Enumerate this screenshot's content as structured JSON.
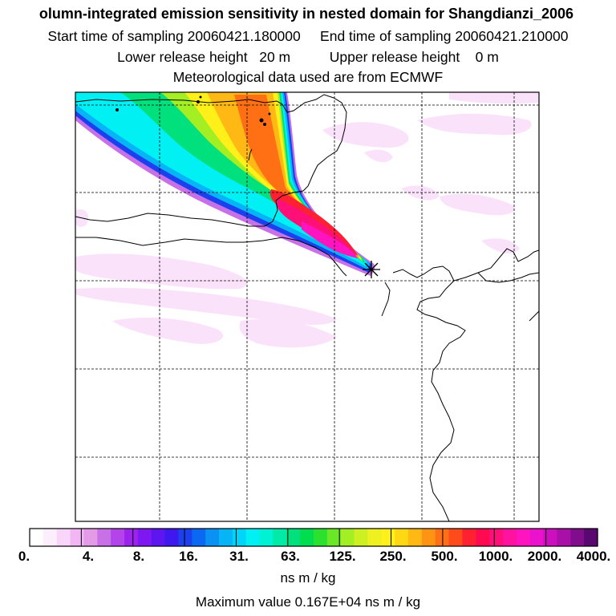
{
  "title": {
    "line1": "olumn-integrated emission sensitivity in nested domain for Shangdianzi_2006",
    "line2": "Start time of sampling 20060421.180000     End time of sampling 20060421.210000",
    "line3": "Lower release height   20 m          Upper release height    0 m",
    "line4": "Meteorological data used are from ECMWF"
  },
  "colorbar": {
    "labels": [
      "0.",
      "4.",
      "8.",
      "16.",
      "31.",
      "63.",
      "125.",
      "250.",
      "500.",
      "1000.",
      "2000.",
      "4000."
    ],
    "colors": [
      "#ffffff",
      "#fdeefd",
      "#f9d6f9",
      "#f2b6f4",
      "#e39be8",
      "#c870e6",
      "#b244ea",
      "#9d22ee",
      "#7e18f0",
      "#5e16f0",
      "#3e18ee",
      "#1d40ee",
      "#0a68f2",
      "#0b90f4",
      "#07b4f6",
      "#00d4f8",
      "#00f0f4",
      "#00f2d4",
      "#00eaa8",
      "#00e07c",
      "#00de50",
      "#2ce030",
      "#6ae828",
      "#a4ee24",
      "#ccf022",
      "#eef020",
      "#fff01a",
      "#ffd814",
      "#ffb814",
      "#ff9414",
      "#ff7014",
      "#ff4a1c",
      "#ff2032",
      "#ff0a50",
      "#ff1078",
      "#ff12a0",
      "#ff14c0",
      "#ea12cc",
      "#cc10c0",
      "#a810a8",
      "#800e8c",
      "#580870"
    ],
    "units": "ns m / kg"
  },
  "footer": {
    "max_value": "Maximum value  0.167E+04 ns m / kg"
  },
  "colors": {
    "low_patch": "#fbe2fb",
    "coast": "#000000",
    "frame": "#000000"
  }
}
